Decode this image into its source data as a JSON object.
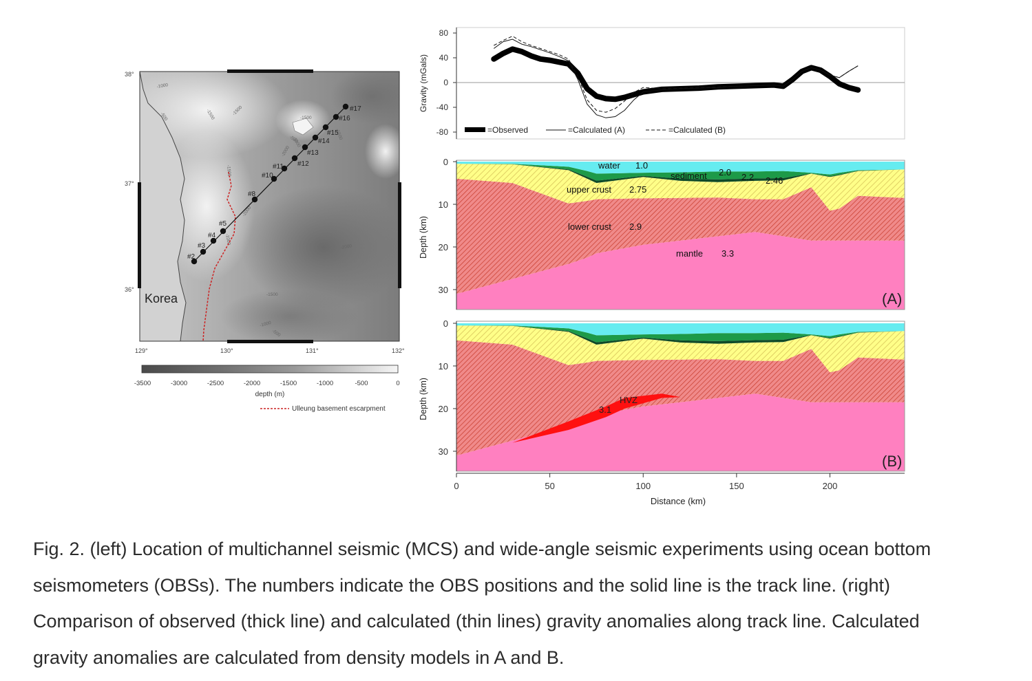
{
  "map": {
    "lat_labels": [
      "38°",
      "37°",
      "36°"
    ],
    "lon_labels": [
      "129°",
      "130°",
      "131°",
      "132°"
    ],
    "region_label": "Korea",
    "contours": [
      "-1000",
      "-500",
      "-1500",
      "-1500",
      "-1500",
      "-1500",
      "-1000",
      "-1500",
      "-2000",
      "-2000",
      "-1500",
      "-1000",
      "-500",
      "-500",
      "-2000",
      "-1000"
    ],
    "stations": [
      "#2",
      "#3",
      "#4",
      "#5",
      "#8",
      "#10",
      "#11",
      "#12",
      "#13",
      "#14",
      "#15",
      "#16",
      "#17"
    ],
    "colorbar_ticks": [
      "-3500",
      "-3000",
      "-2500",
      "-2000",
      "-1500",
      "-1000",
      "-500",
      "0"
    ],
    "colorbar_label": "depth (m)",
    "legend_label": "Ulleung basement escarpment",
    "colors": {
      "escarpment": "#cc2222",
      "track": "#111111"
    }
  },
  "chart_data": [
    {
      "type": "line",
      "ylabel": "Gravity (mGals)",
      "yticks": [
        "80",
        "40",
        "0",
        "-40",
        "-80"
      ],
      "ylim": [
        -80,
        90
      ],
      "xlim": [
        0,
        240
      ],
      "legend": [
        "=Observed",
        "=Calculated (A)",
        "=Calculated (B)"
      ],
      "series": [
        {
          "name": "=Observed",
          "x": [
            20,
            25,
            30,
            35,
            40,
            45,
            50,
            55,
            60,
            65,
            70,
            75,
            80,
            85,
            90,
            100,
            110,
            120,
            130,
            140,
            150,
            160,
            170,
            175,
            180,
            185,
            190,
            195,
            200,
            205,
            210,
            215
          ],
          "y": [
            38,
            47,
            54,
            50,
            43,
            38,
            36,
            33,
            30,
            15,
            -10,
            -22,
            -26,
            -27,
            -24,
            -15,
            -11,
            -10,
            -9,
            -7,
            -6,
            -5,
            -4,
            -6,
            5,
            18,
            24,
            20,
            10,
            -2,
            -8,
            -12
          ]
        },
        {
          "name": "=Calculated (A)",
          "x": [
            20,
            25,
            30,
            35,
            40,
            45,
            50,
            55,
            60,
            65,
            70,
            75,
            80,
            85,
            90,
            95,
            100,
            110,
            120,
            130,
            140,
            150,
            160,
            170,
            175,
            180,
            185,
            190,
            195,
            200,
            205,
            210,
            215
          ],
          "y": [
            55,
            66,
            70,
            62,
            58,
            53,
            48,
            42,
            35,
            5,
            -35,
            -52,
            -57,
            -55,
            -45,
            -28,
            -15,
            -12,
            -10,
            -9,
            -8,
            -6,
            -5,
            -4,
            -6,
            5,
            18,
            24,
            20,
            12,
            8,
            18,
            27
          ]
        },
        {
          "name": "=Calculated (B)",
          "x": [
            20,
            25,
            30,
            35,
            40,
            45,
            50,
            55,
            60,
            65,
            70,
            75,
            80,
            85,
            90,
            95,
            100,
            110,
            120,
            130,
            140,
            150,
            160,
            170,
            175,
            180,
            185,
            190,
            195,
            200,
            205,
            210,
            215
          ],
          "y": [
            60,
            68,
            75,
            66,
            60,
            55,
            50,
            45,
            38,
            10,
            -28,
            -45,
            -48,
            -42,
            -30,
            -16,
            -8,
            -10,
            -9,
            -8,
            -7,
            -6,
            -5,
            -4,
            -6,
            5,
            18,
            24,
            20,
            12,
            8,
            18,
            27
          ]
        }
      ]
    },
    {
      "type": "area",
      "panel": "(A)",
      "ylabel": "Depth (km)",
      "yticks": [
        "0",
        "10",
        "20",
        "30"
      ],
      "ylim": [
        0,
        35
      ],
      "xlim": [
        0,
        240
      ],
      "labels": [
        "water",
        "1.0",
        "sediment",
        "2.0",
        "2.2",
        "2.46",
        "upper crust",
        "2.75",
        "lower crust",
        "2.9",
        "mantle",
        "3.3"
      ],
      "boundaries": {
        "x": [
          0,
          30,
          60,
          70,
          75,
          100,
          120,
          140,
          160,
          175,
          190,
          200,
          205,
          215,
          240
        ],
        "seafloor": [
          0.5,
          0.5,
          1.2,
          2.2,
          2.8,
          2.6,
          2.5,
          2.3,
          2.3,
          2.2,
          2.6,
          3.0,
          2.6,
          2.0,
          1.8
        ],
        "basement": [
          0.5,
          0.6,
          2.0,
          4.0,
          5.0,
          3.6,
          4.5,
          4.8,
          4.5,
          4.4,
          2.8,
          3.6,
          3.2,
          2.2,
          1.8
        ],
        "conrad": [
          4.0,
          5.0,
          9.8,
          9.2,
          8.8,
          8.6,
          8.5,
          8.4,
          8.8,
          8.8,
          6.0,
          11.5,
          11.0,
          8.0,
          8.5
        ],
        "moho": [
          31.0,
          27.5,
          24.0,
          22.5,
          21.5,
          19.5,
          18.5,
          17.5,
          16.5,
          17.5,
          18.5,
          18.5,
          18.5,
          18.5,
          18.5
        ]
      }
    },
    {
      "type": "area",
      "panel": "(B)",
      "ylabel": "Depth (km)",
      "yticks": [
        "0",
        "10",
        "20",
        "30"
      ],
      "ylim": [
        0,
        35
      ],
      "xlim": [
        0,
        240
      ],
      "xlabel": "Distance (km)",
      "xticks": [
        "0",
        "50",
        "100",
        "150",
        "200"
      ],
      "labels": [
        "3.1",
        "HVZ"
      ],
      "hvz": {
        "x": [
          30,
          60,
          80,
          90,
          110,
          120
        ],
        "top": [
          28.0,
          23.0,
          19.5,
          17.5,
          16.5,
          17.3
        ],
        "bottom": [
          28.0,
          25.0,
          22.0,
          20.0,
          17.5,
          17.3
        ]
      }
    }
  ],
  "caption": {
    "lines": [
      "Fig. 2. (left) Location of multichannel seismic (MCS) and wide-angle seismic experiments using ocean bottom",
      "seismometers (OBSs). The numbers indicate the OBS positions and the solid line is the track line. (right)",
      "Comparison of observed (thick line) and calculated (thin lines) gravity anomalies along track line. Calculated",
      "gravity anomalies are calculated from density models in A and B."
    ]
  }
}
